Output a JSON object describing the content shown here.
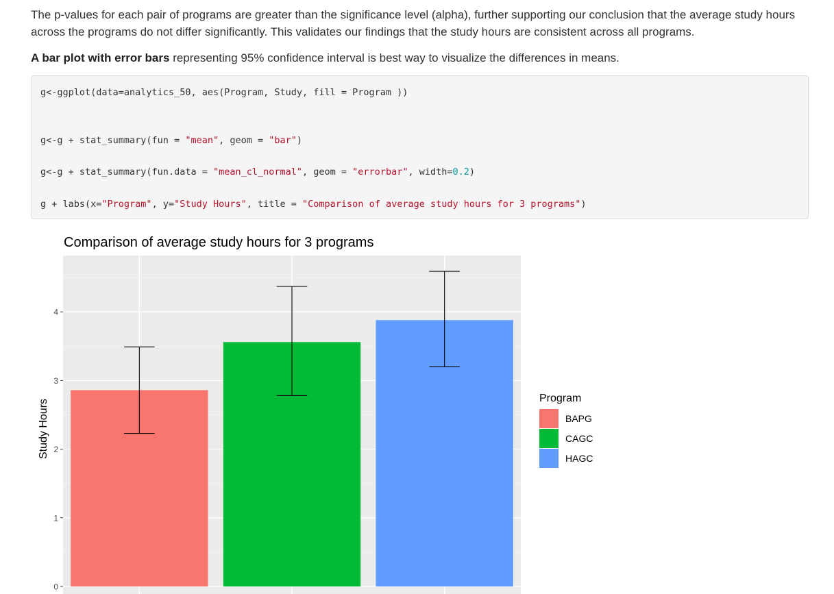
{
  "text": {
    "p1": "The p-values for each pair of programs are greater than the significance level (alpha), further supporting our conclusion that the average study hours across the programs do not differ significantly. This validates our findings that the study hours are consistent across all programs.",
    "p2_bold": "A bar plot with error bars",
    "p2_rest": " representing 95% confidence interval is best way to visualize the differences in means."
  },
  "code": {
    "line1": "g<-ggplot(data=analytics_50, aes(Program, Study, fill = Program ))",
    "line2_a": "g<-g + stat_summary(fun = ",
    "line2_s1": "\"mean\"",
    "line2_b": ", geom = ",
    "line2_s2": "\"bar\"",
    "line2_c": ")",
    "line3_a": "g<-g + stat_summary(fun.data = ",
    "line3_s1": "\"mean_cl_normal\"",
    "line3_b": ", geom = ",
    "line3_s2": "\"errorbar\"",
    "line3_c": ", width=",
    "line3_n": "0.2",
    "line3_d": ")",
    "line4_a": "g + labs(x=",
    "line4_s1": "\"Program\"",
    "line4_b": ", y=",
    "line4_s2": "\"Study Hours\"",
    "line4_c": ", title = ",
    "line4_s3": "\"Comparison of average study hours for 3 programs\"",
    "line4_d": ")"
  },
  "chart_data": {
    "type": "bar",
    "title": "Comparison of average study hours for 3 programs",
    "xlabel": "",
    "ylabel": "Study Hours",
    "categories": [
      "BAPG",
      "CAGC",
      "HAGC"
    ],
    "values": [
      2.86,
      3.56,
      3.88
    ],
    "error_low": [
      2.23,
      2.78,
      3.2
    ],
    "error_high": [
      3.49,
      4.37,
      4.59
    ],
    "colors": [
      "#F8766D",
      "#00BA38",
      "#619CFF"
    ],
    "yticks": [
      0,
      1,
      2,
      3,
      4
    ],
    "ylim": [
      0,
      4.8
    ],
    "grid": true,
    "panel_background": "#EBEBEB",
    "legend": {
      "title": "Program",
      "entries": [
        "BAPG",
        "CAGC",
        "HAGC"
      ],
      "placement": "right"
    }
  }
}
